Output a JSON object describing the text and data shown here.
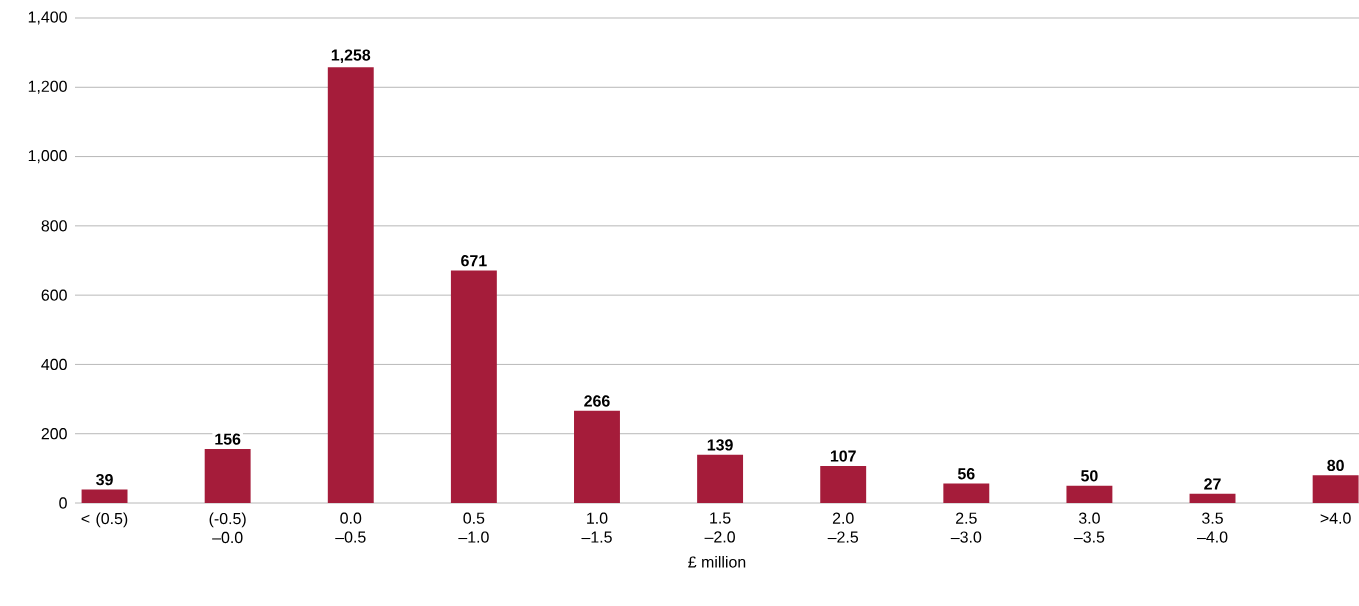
{
  "chart_data": {
    "type": "bar",
    "xlabel": "£ million",
    "categories": [
      "< (0.5)",
      "(-0.5) –0.0",
      "0.0 –0.5",
      "0.5 –1.0",
      "1.0 –1.5",
      "1.5 –2.0",
      "2.0 –2.5",
      "2.5 –3.0",
      "3.0 –3.5",
      "3.5 –4.0",
      ">4.0"
    ],
    "values": [
      39,
      156,
      1258,
      671,
      266,
      139,
      107,
      56,
      50,
      27,
      80
    ],
    "value_labels": [
      "39",
      "156",
      "1,258",
      "671",
      "266",
      "139",
      "107",
      "56",
      "50",
      "27",
      "80"
    ],
    "color": "#a51c3a",
    "ylim": [
      0,
      1400
    ],
    "yticks": [
      0,
      200,
      400,
      600,
      800,
      {
        "value": 1000,
        "label": "1,000"
      },
      {
        "value": 1200,
        "label": "1,200"
      },
      {
        "value": 1400,
        "label": "1,400"
      }
    ],
    "grid": "y"
  }
}
